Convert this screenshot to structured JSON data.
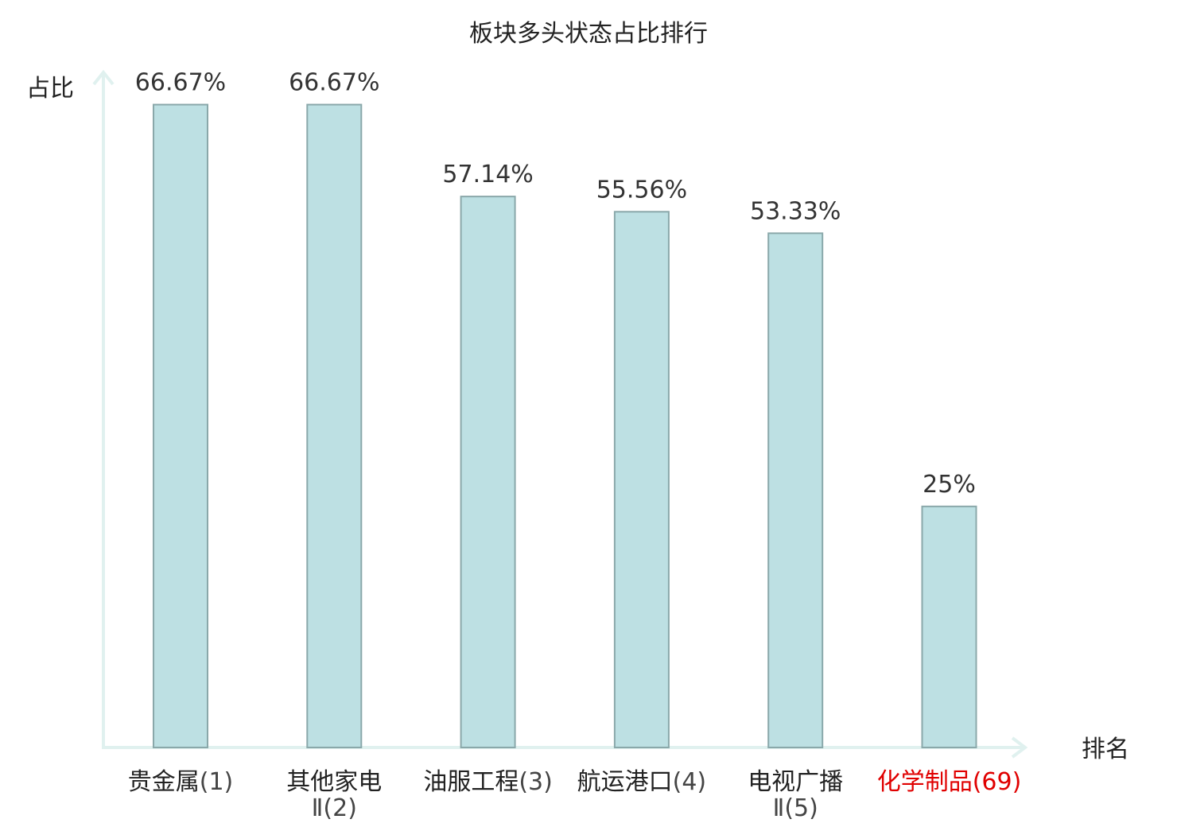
{
  "chart_data": {
    "type": "bar",
    "title": "板块多头状态占比排行",
    "ylabel": "占比",
    "xlabel": "排名",
    "ylim": [
      0,
      70
    ],
    "grid": false,
    "categories": [
      {
        "name": "贵金属",
        "suffix": "",
        "rank": "(1)",
        "highlight": false
      },
      {
        "name": "其他家电",
        "suffix": "Ⅱ",
        "rank": "(2)",
        "highlight": false
      },
      {
        "name": "油服工程",
        "suffix": "",
        "rank": "(3)",
        "highlight": false
      },
      {
        "name": "航运港口",
        "suffix": "",
        "rank": "(4)",
        "highlight": false
      },
      {
        "name": "电视广播",
        "suffix": "Ⅱ",
        "rank": "(5)",
        "highlight": false
      },
      {
        "name": "化学制品",
        "suffix": "",
        "rank": "(69)",
        "highlight": true
      }
    ],
    "values": [
      66.67,
      66.67,
      57.14,
      55.56,
      53.33,
      25
    ],
    "value_labels": [
      "66.67%",
      "66.67%",
      "57.14%",
      "55.56%",
      "53.33%",
      "25%"
    ]
  },
  "colors": {
    "bar_fill": "#bde0e3",
    "bar_stroke": "#8aa8aa",
    "axis": "#e0f1ef",
    "highlight": "#e00000"
  }
}
